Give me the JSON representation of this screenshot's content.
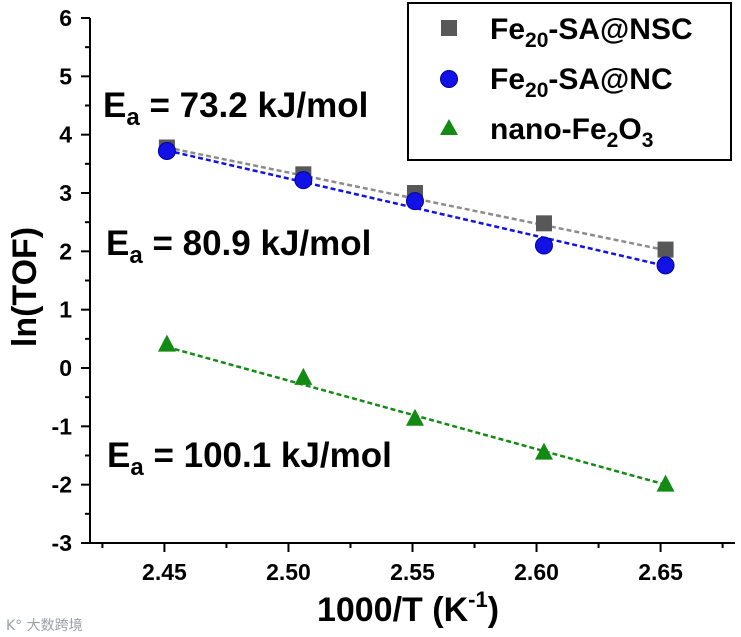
{
  "chart_data": {
    "type": "scatter",
    "xlabel": "1000/T (K",
    "xlabel_sup": "-1",
    "xlabel_close": ")",
    "ylabel": "ln(TOF)",
    "xlim": [
      2.42,
      2.68
    ],
    "ylim": [
      -3,
      6
    ],
    "xticks": [
      "2.45",
      "2.50",
      "2.55",
      "2.60",
      "2.65"
    ],
    "yticks": [
      "-3",
      "-2",
      "-1",
      "0",
      "1",
      "2",
      "3",
      "4",
      "5",
      "6"
    ],
    "legend_position": "top-right",
    "series": [
      {
        "name": "Fe20-SA@NSC",
        "legend_parts": [
          "Fe",
          "20",
          "-SA@NSC"
        ],
        "marker": "square",
        "color": "#585858",
        "fit_color": "#8c8c8c",
        "x": [
          2.451,
          2.506,
          2.551,
          2.603,
          2.652
        ],
        "y": [
          3.78,
          3.32,
          3.0,
          2.48,
          2.03
        ],
        "fit": [
          [
            2.451,
            3.78
          ],
          [
            2.652,
            2.02
          ]
        ],
        "annotation": {
          "prefix": "E",
          "sub": "a",
          "text": " = 73.2 kJ/mol",
          "color": "#8c8c8c"
        }
      },
      {
        "name": "Fe20-SA@NC",
        "legend_parts": [
          "Fe",
          "20",
          "-SA@NC"
        ],
        "marker": "circle",
        "color": "#1212e6",
        "fit_color": "#1212e6",
        "x": [
          2.451,
          2.506,
          2.551,
          2.603,
          2.652
        ],
        "y": [
          3.72,
          3.22,
          2.86,
          2.1,
          1.76
        ],
        "fit": [
          [
            2.451,
            3.73
          ],
          [
            2.652,
            1.75
          ]
        ],
        "annotation": {
          "prefix": "E",
          "sub": "a",
          "text": " = 80.9 kJ/mol",
          "color": "#1212e6"
        }
      },
      {
        "name": "nano-Fe2O3",
        "legend_parts": [
          "nano-Fe",
          "2",
          "O",
          "3"
        ],
        "marker": "triangle",
        "color": "#138a13",
        "fit_color": "#138a13",
        "x": [
          2.451,
          2.506,
          2.551,
          2.603,
          2.652
        ],
        "y": [
          0.4,
          -0.17,
          -0.87,
          -1.45,
          -2.0
        ],
        "fit": [
          [
            2.451,
            0.36
          ],
          [
            2.652,
            -2.0
          ]
        ],
        "annotation": {
          "prefix": "E",
          "sub": "a",
          "text": " = 100.1 kJ/mol",
          "color": "#138a13"
        }
      }
    ]
  },
  "watermark": "K° 大数跨境"
}
